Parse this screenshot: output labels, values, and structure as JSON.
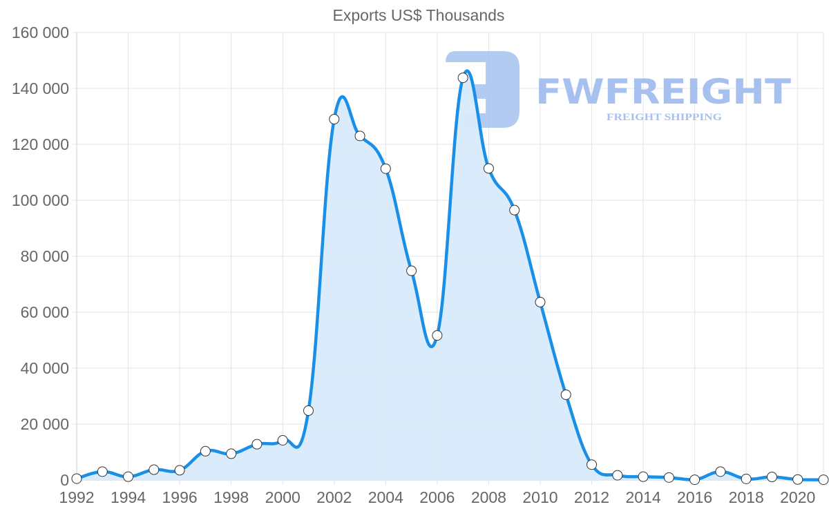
{
  "chart_data": {
    "type": "area",
    "title": "Exports US$ Thousands",
    "xlabel": "",
    "ylabel": "",
    "x": [
      1992,
      1993,
      1994,
      1995,
      1996,
      1997,
      1998,
      1999,
      2000,
      2001,
      2002,
      2003,
      2004,
      2005,
      2006,
      2007,
      2008,
      2009,
      2010,
      2011,
      2012,
      2013,
      2014,
      2015,
      2016,
      2017,
      2018,
      2019,
      2020,
      2021
    ],
    "series": [
      {
        "name": "Exports US$ Thousands",
        "values": [
          500,
          3000,
          1200,
          3700,
          3500,
          10300,
          9400,
          12800,
          14200,
          24800,
          129000,
          123000,
          111300,
          74800,
          51700,
          143800,
          111400,
          96500,
          63600,
          30500,
          5500,
          1700,
          1200,
          900,
          100,
          3000,
          400,
          1100,
          200,
          100
        ]
      }
    ],
    "x_tick_labels": [
      "1992",
      "1994",
      "1996",
      "1998",
      "2000",
      "2002",
      "2004",
      "2006",
      "2008",
      "2010",
      "2012",
      "2014",
      "2016",
      "2018",
      "2020"
    ],
    "y_tick_labels": [
      "0",
      "20 000",
      "40 000",
      "60 000",
      "80 000",
      "100 000",
      "120 000",
      "140 000",
      "160 000"
    ],
    "ylim": [
      0,
      160000
    ],
    "xlim": [
      1992,
      2021
    ],
    "grid": true,
    "legend": "none",
    "colors": {
      "line": "#1a8fe8",
      "fill": "#d8ebfb",
      "point_fill": "#ffffff",
      "point_stroke": "#333333",
      "grid": "#e5e5e5",
      "text": "#666666"
    }
  },
  "watermark": {
    "brand": "FWFREIGHT",
    "tagline": "FREIGHT SHIPPING",
    "color": "#a6c1ef"
  }
}
